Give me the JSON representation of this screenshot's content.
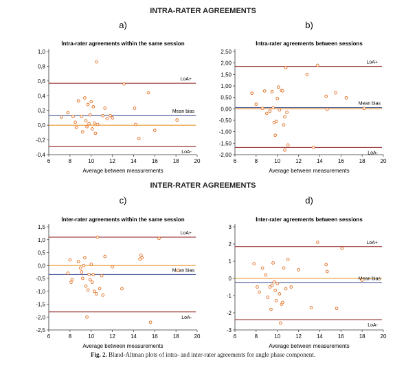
{
  "figure": {
    "intra_title": "INTRA-RATER AGREEMENTS",
    "inter_title": "INTER-RATER AGREEMENTS",
    "caption_label": "Fig. 2.",
    "caption_text": "Bland-Altman plots of intra- and inter-rater agreements for angle phase component."
  },
  "chart_data": [
    {
      "type": "scatter",
      "panel_letter": "a)",
      "title": "Intra-rater agreements within the same session",
      "xlabel": "Average between measurements",
      "ylabel": "",
      "xlim": [
        6,
        20
      ],
      "ylim": [
        -0.4,
        1.0
      ],
      "xticks": [
        6,
        8,
        10,
        12,
        14,
        16,
        18,
        20
      ],
      "yticks": [
        -0.4,
        -0.2,
        0.0,
        0.2,
        0.4,
        0.6,
        0.8,
        1.0
      ],
      "ytick_labels": [
        "-0,4",
        "-0,2",
        "0,0",
        "0,2",
        "0,4",
        "0,6",
        "0,8",
        "1,0"
      ],
      "lines": [
        {
          "name": "LoA+",
          "y": 0.57,
          "color": "#8b1a1a"
        },
        {
          "name": "Mean bias",
          "y": 0.13,
          "color": "#2a3a8c"
        },
        {
          "name": "zero",
          "y": 0.0,
          "color": "#e8952a"
        },
        {
          "name": "LoA-",
          "y": -0.29,
          "color": "#8b1a1a"
        }
      ],
      "line_labels": {
        "upper": "LoA+",
        "mean": "Mean bias",
        "lower": "LoA-"
      },
      "points": [
        [
          7.2,
          0.11
        ],
        [
          7.8,
          0.17
        ],
        [
          8.3,
          0.12
        ],
        [
          8.5,
          0.04
        ],
        [
          8.6,
          -0.03
        ],
        [
          8.8,
          0.33
        ],
        [
          9.1,
          0.12
        ],
        [
          9.2,
          -0.09
        ],
        [
          9.4,
          0.37
        ],
        [
          9.5,
          0.06
        ],
        [
          9.6,
          -0.02
        ],
        [
          9.7,
          0.28
        ],
        [
          9.8,
          0.02
        ],
        [
          9.9,
          0.14
        ],
        [
          10.0,
          0.32
        ],
        [
          10.1,
          -0.05
        ],
        [
          10.2,
          0.25
        ],
        [
          10.3,
          0.03
        ],
        [
          10.4,
          -0.11
        ],
        [
          10.5,
          0.86
        ],
        [
          10.6,
          0.01
        ],
        [
          11.1,
          0.13
        ],
        [
          11.3,
          0.23
        ],
        [
          11.5,
          0.09
        ],
        [
          11.8,
          0.13
        ],
        [
          12.0,
          0.1
        ],
        [
          13.1,
          0.56
        ],
        [
          14.1,
          0.23
        ],
        [
          14.2,
          0.01
        ],
        [
          14.5,
          -0.18
        ],
        [
          15.4,
          0.44
        ],
        [
          16.0,
          -0.07
        ],
        [
          18.1,
          0.07
        ]
      ]
    },
    {
      "type": "scatter",
      "panel_letter": "b)",
      "title": "Intra-rater agreements between sessions",
      "xlabel": "Average between measurements",
      "ylabel": "",
      "xlim": [
        6,
        20
      ],
      "ylim": [
        -2.0,
        2.5
      ],
      "xticks": [
        6,
        8,
        10,
        12,
        14,
        16,
        18,
        20
      ],
      "yticks": [
        -2.0,
        -1.5,
        -1.0,
        -0.5,
        0.0,
        0.5,
        1.0,
        1.5,
        2.0,
        2.5
      ],
      "ytick_labels": [
        "-2,00",
        "-1,50",
        "-1,00",
        "-0,50",
        "0,00",
        "0,50",
        "1,00",
        "1,50",
        "2,00",
        "2,50"
      ],
      "lines": [
        {
          "name": "LoA+",
          "y": 1.85,
          "color": "#8b1a1a"
        },
        {
          "name": "Mean bias",
          "y": 0.05,
          "color": "#2a3a8c"
        },
        {
          "name": "zero",
          "y": 0.0,
          "color": "#e8952a"
        },
        {
          "name": "LoA-",
          "y": -1.68,
          "color": "#8b1a1a"
        }
      ],
      "line_labels": {
        "upper": "LoA+",
        "mean": "Mean bias",
        "lower": "LoA-"
      },
      "points": [
        [
          7.6,
          0.68
        ],
        [
          8.0,
          0.2
        ],
        [
          8.6,
          0.02
        ],
        [
          8.8,
          0.78
        ],
        [
          9.0,
          -0.2
        ],
        [
          9.3,
          -0.1
        ],
        [
          9.5,
          0.75
        ],
        [
          9.6,
          0.05
        ],
        [
          9.7,
          -0.6
        ],
        [
          9.8,
          -1.15
        ],
        [
          9.9,
          -0.55
        ],
        [
          10.0,
          0.45
        ],
        [
          10.1,
          0.95
        ],
        [
          10.2,
          -0.05
        ],
        [
          10.4,
          0.8
        ],
        [
          10.5,
          0.78
        ],
        [
          10.6,
          -0.7
        ],
        [
          10.7,
          -0.35
        ],
        [
          10.8,
          1.8
        ],
        [
          10.9,
          -0.15
        ],
        [
          11.0,
          -1.58
        ],
        [
          10.7,
          -1.8
        ],
        [
          12.8,
          1.5
        ],
        [
          13.4,
          -1.68
        ],
        [
          13.8,
          1.9
        ],
        [
          14.6,
          0.55
        ],
        [
          14.7,
          -0.02
        ],
        [
          15.5,
          0.7
        ],
        [
          16.5,
          0.48
        ],
        [
          18.2,
          0.02
        ]
      ]
    },
    {
      "type": "scatter",
      "panel_letter": "c)",
      "title": "Inter-rater agreements within the same session",
      "xlabel": "Average between measurements",
      "ylabel": "",
      "xlim": [
        6,
        20
      ],
      "ylim": [
        -2.5,
        1.5
      ],
      "xticks": [
        6,
        8,
        10,
        12,
        14,
        16,
        18,
        20
      ],
      "yticks": [
        -2.5,
        -2.0,
        -1.5,
        -1.0,
        -0.5,
        0.0,
        0.5,
        1.0,
        1.5
      ],
      "ytick_labels": [
        "-2,5",
        "-2,0",
        "-1,5",
        "-1,0",
        "-0,5",
        "0,0",
        "0,5",
        "1,0",
        "1,5"
      ],
      "lines": [
        {
          "name": "LoA+",
          "y": 1.1,
          "color": "#8b1a1a"
        },
        {
          "name": "Mean bias",
          "y": -0.35,
          "color": "#2a3a8c"
        },
        {
          "name": "zero",
          "y": 0.0,
          "color": "#e8952a"
        },
        {
          "name": "LoA-",
          "y": -1.8,
          "color": "#8b1a1a"
        }
      ],
      "line_labels": {
        "upper": "LoA+",
        "mean": "Mean bias",
        "lower": "LoA-"
      },
      "points": [
        [
          7.8,
          -0.3
        ],
        [
          8.0,
          0.22
        ],
        [
          8.1,
          -0.65
        ],
        [
          8.2,
          -0.55
        ],
        [
          8.8,
          0.15
        ],
        [
          9.0,
          -0.1
        ],
        [
          9.1,
          -0.25
        ],
        [
          9.2,
          -0.5
        ],
        [
          9.3,
          0.0
        ],
        [
          9.4,
          0.3
        ],
        [
          9.5,
          -0.8
        ],
        [
          9.6,
          -2.0
        ],
        [
          9.7,
          -0.95
        ],
        [
          9.8,
          -0.35
        ],
        [
          9.9,
          -0.55
        ],
        [
          10.0,
          0.05
        ],
        [
          10.1,
          -0.65
        ],
        [
          10.2,
          -0.35
        ],
        [
          10.3,
          -1.0
        ],
        [
          10.5,
          -1.1
        ],
        [
          10.6,
          1.1
        ],
        [
          10.8,
          -0.9
        ],
        [
          11.0,
          -0.4
        ],
        [
          11.1,
          -1.15
        ],
        [
          11.3,
          0.35
        ],
        [
          12.0,
          -0.05
        ],
        [
          12.9,
          -0.9
        ],
        [
          14.6,
          0.25
        ],
        [
          14.7,
          0.4
        ],
        [
          14.8,
          0.3
        ],
        [
          15.6,
          -2.2
        ],
        [
          16.4,
          1.05
        ],
        [
          18.2,
          -0.18
        ]
      ]
    },
    {
      "type": "scatter",
      "panel_letter": "d)",
      "title": "Inter-rater agreements between sessions",
      "xlabel": "Average between measurements",
      "ylabel": "",
      "xlim": [
        6,
        20
      ],
      "ylim": [
        -3,
        3
      ],
      "xticks": [
        6,
        8,
        10,
        12,
        14,
        16,
        18,
        20
      ],
      "yticks": [
        -3,
        -2,
        -1,
        0,
        1,
        2,
        3
      ],
      "ytick_labels": [
        "-3",
        "-2",
        "-1",
        "0",
        "1",
        "2",
        "3"
      ],
      "lines": [
        {
          "name": "LoA+",
          "y": 1.85,
          "color": "#8b1a1a"
        },
        {
          "name": "Mean bias",
          "y": -0.25,
          "color": "#2a3a8c"
        },
        {
          "name": "zero",
          "y": 0.0,
          "color": "#e8952a"
        },
        {
          "name": "LoA-",
          "y": -2.4,
          "color": "#8b1a1a"
        }
      ],
      "line_labels": {
        "upper": "LoA+",
        "mean": "Mean bias",
        "lower": "LoA-"
      },
      "points": [
        [
          7.8,
          0.85
        ],
        [
          8.1,
          -0.5
        ],
        [
          8.3,
          -0.8
        ],
        [
          8.6,
          0.6
        ],
        [
          8.9,
          0.2
        ],
        [
          9.1,
          -1.1
        ],
        [
          9.3,
          -0.5
        ],
        [
          9.4,
          -1.8
        ],
        [
          9.5,
          -0.4
        ],
        [
          9.6,
          0.9
        ],
        [
          9.7,
          -0.2
        ],
        [
          9.8,
          -0.7
        ],
        [
          9.9,
          -1.3
        ],
        [
          10.0,
          -0.3
        ],
        [
          10.2,
          -0.9
        ],
        [
          10.3,
          -2.6
        ],
        [
          10.4,
          -1.5
        ],
        [
          10.5,
          -1.4
        ],
        [
          10.6,
          0.6
        ],
        [
          10.8,
          -0.6
        ],
        [
          11.0,
          1.1
        ],
        [
          11.3,
          -0.5
        ],
        [
          12.0,
          0.5
        ],
        [
          13.2,
          -1.7
        ],
        [
          13.8,
          2.1
        ],
        [
          14.6,
          0.8
        ],
        [
          14.7,
          0.4
        ],
        [
          15.6,
          -1.75
        ],
        [
          16.1,
          1.75
        ],
        [
          18.0,
          -0.1
        ]
      ]
    }
  ]
}
